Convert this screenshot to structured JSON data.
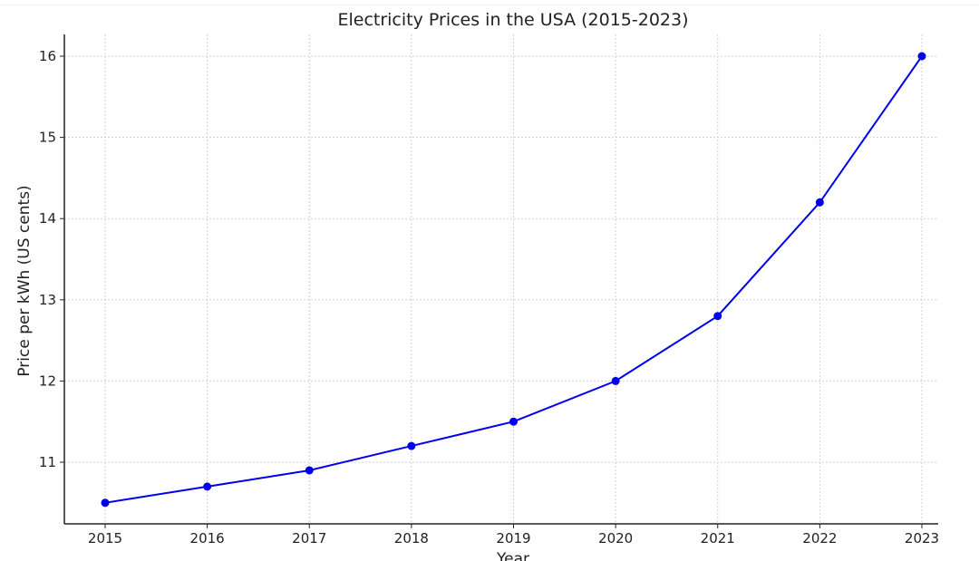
{
  "chart_data": {
    "type": "line",
    "title": "Electricity Prices in the USA (2015-2023)",
    "xlabel": "Year",
    "ylabel": "Price per kWh (US cents)",
    "x": [
      2015,
      2016,
      2017,
      2018,
      2019,
      2020,
      2021,
      2022,
      2023
    ],
    "series": [
      {
        "values": [
          10.5,
          10.7,
          10.9,
          11.2,
          11.5,
          12.0,
          12.8,
          14.2,
          16.0
        ],
        "color": "#0000ee",
        "marker": "circle"
      }
    ],
    "x_ticks": [
      "2015",
      "2016",
      "2017",
      "2018",
      "2019",
      "2020",
      "2021",
      "2022",
      "2023"
    ],
    "y_ticks": [
      "11",
      "12",
      "13",
      "14",
      "15",
      "16"
    ],
    "xlim": [
      2014.6,
      2023.16
    ],
    "ylim": [
      10.27,
      16.27
    ],
    "grid": true,
    "grid_style": "dotted",
    "grid_color": "#d0d0d0"
  }
}
